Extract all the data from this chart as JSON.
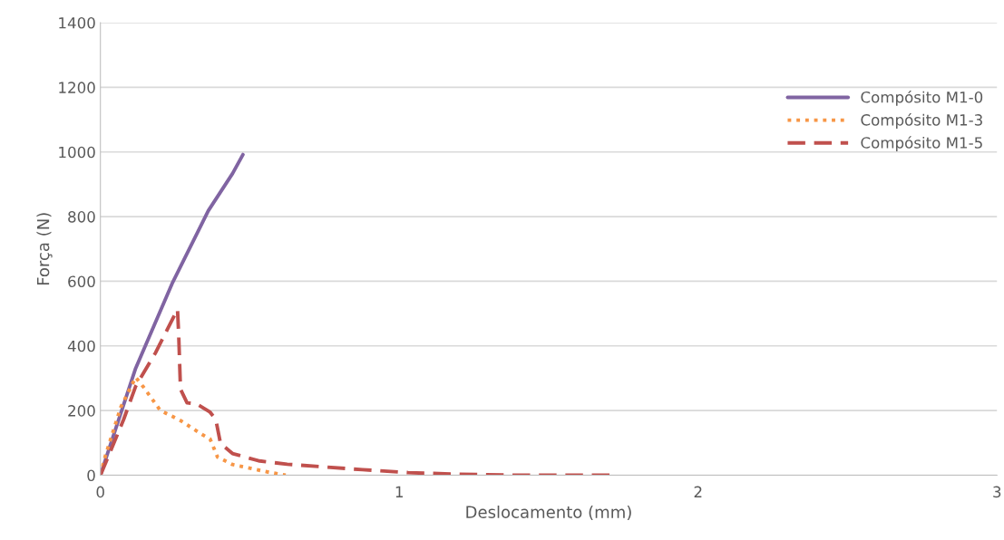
{
  "chart_data": {
    "type": "line",
    "xlabel": "Deslocamento (mm)",
    "ylabel": "Força (N)",
    "xlim": [
      0,
      3
    ],
    "xticks": [
      0,
      1,
      2,
      3
    ],
    "ylim": [
      0,
      1400
    ],
    "yticks": [
      0,
      200,
      400,
      600,
      800,
      1000,
      1200,
      1400
    ],
    "grid": "y",
    "legend": "top right",
    "marker": "none",
    "series": [
      {
        "name": "Compósito M1-0",
        "color": "#8064a2",
        "line_style": "solid",
        "x": [
          0,
          0.048,
          0.118,
          0.24,
          0.361,
          0.442,
          0.477
        ],
        "values": [
          0,
          135,
          331,
          593,
          818,
          933,
          992
        ]
      },
      {
        "name": "Compósito M1-3",
        "color": "#f79646",
        "line_style": "dotted",
        "x": [
          0,
          0.017,
          0.068,
          0.118,
          0.143,
          0.2,
          0.27,
          0.34,
          0.367,
          0.392,
          0.442,
          0.564,
          0.62
        ],
        "values": [
          0,
          61,
          210,
          303,
          274,
          201,
          168,
          126,
          112,
          56,
          33,
          9,
          0
        ]
      },
      {
        "name": "Compósito M1-5",
        "color": "#c0504d",
        "line_style": "dashed",
        "x": [
          0,
          0.032,
          0.078,
          0.118,
          0.184,
          0.225,
          0.258,
          0.262,
          0.268,
          0.29,
          0.321,
          0.366,
          0.386,
          0.402,
          0.442,
          0.533,
          0.625,
          0.877,
          1.03,
          1.2,
          1.4,
          1.73
        ],
        "values": [
          0,
          70,
          173,
          275,
          378,
          453,
          513,
          434,
          266,
          224,
          221,
          196,
          173,
          98,
          67,
          44,
          34,
          17,
          8,
          3,
          0,
          0
        ]
      }
    ]
  }
}
